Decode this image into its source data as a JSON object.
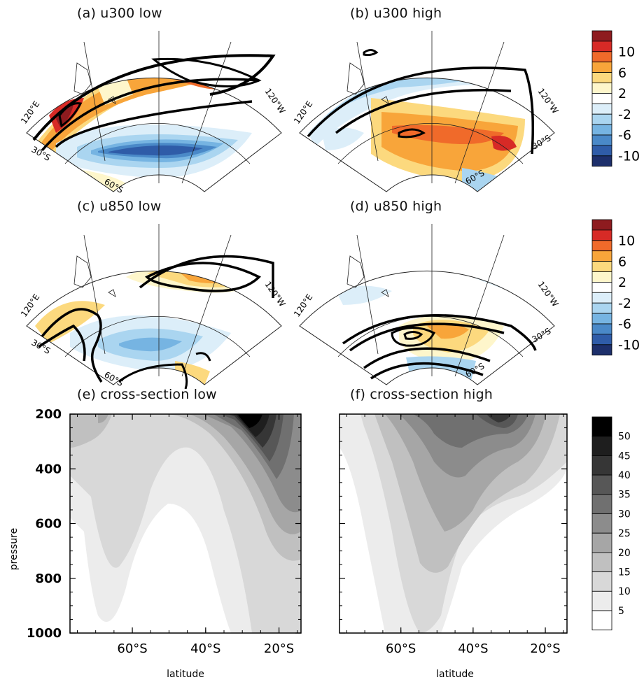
{
  "panels": {
    "a": {
      "title": "(a) u300 low"
    },
    "b": {
      "title": "(b) u300 high"
    },
    "c": {
      "title": "(c) u850 low"
    },
    "d": {
      "title": "(d) u850 high"
    },
    "e": {
      "title": "(e) cross-section low"
    },
    "f": {
      "title": "(f) cross-section high"
    }
  },
  "map_labels": {
    "lon_left": "120°E",
    "lon_right": "120°W",
    "lat_30": "30°S",
    "lat_60": "60°S"
  },
  "chart_data": [
    {
      "type": "heatmap",
      "name": "anomaly colorbar",
      "levels": [
        "10",
        "6",
        "2",
        "-2",
        "-6",
        "-10"
      ],
      "colors": [
        "#8e1b1f",
        "#d72a26",
        "#f06a2a",
        "#f8a53a",
        "#fcd97e",
        "#fef6cb",
        "#ffffff",
        "#dceef9",
        "#aad5f0",
        "#76b4e2",
        "#4a89c8",
        "#2f5ca8",
        "#1d2f6b"
      ]
    },
    {
      "type": "heatmap",
      "name": "cross-section colorbar",
      "levels": [
        "50",
        "45",
        "40",
        "35",
        "30",
        "25",
        "20",
        "15",
        "10",
        "5"
      ],
      "colors": [
        "#000000",
        "#1e1e1e",
        "#363636",
        "#575757",
        "#707070",
        "#8c8c8c",
        "#a6a6a6",
        "#c0c0c0",
        "#d8d8d8",
        "#ececec",
        "#ffffff"
      ]
    },
    {
      "type": "heatmap",
      "name": "(e) cross-section low",
      "xlabel": "latitude",
      "ylabel": "pressure",
      "x_ticks": [
        "60°S",
        "40°S",
        "20°S"
      ],
      "y_ticks": [
        "200",
        "400",
        "600",
        "800",
        "1000"
      ],
      "xlim": [
        -77,
        -14
      ],
      "ylim": [
        1000,
        200
      ]
    },
    {
      "type": "heatmap",
      "name": "(f) cross-section high",
      "xlabel": "latitude",
      "x_ticks": [
        "60°S",
        "40°S",
        "20°S"
      ],
      "xlim": [
        -77,
        -14
      ],
      "ylim": [
        1000,
        200
      ]
    }
  ]
}
